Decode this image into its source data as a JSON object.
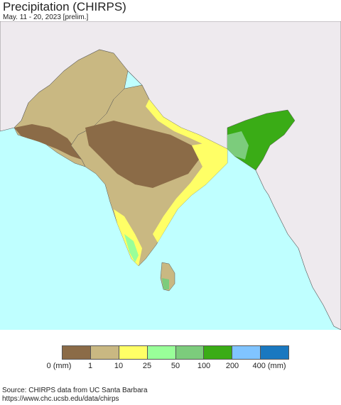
{
  "title": "Precipitation (CHIRPS)",
  "subtitle": "May. 11 - 20, 2023 [prelim.]",
  "colors": {
    "ocean": "#bfffff",
    "land_outside": "#eeeaee",
    "border": "#555555"
  },
  "legend": {
    "colors": [
      "#8b6b47",
      "#c9b882",
      "#ffff66",
      "#99ff99",
      "#7ccc7c",
      "#3aac16",
      "#80c4ff",
      "#1a78c0"
    ],
    "labels": [
      "0 (mm)",
      "1",
      "10",
      "25",
      "50",
      "100",
      "200",
      "400 (mm)"
    ]
  },
  "source": {
    "line1": "Source: CHIRPS data from UC Santa Barbara",
    "line2": "https://www.chc.ucsb.edu/data/chirps"
  }
}
